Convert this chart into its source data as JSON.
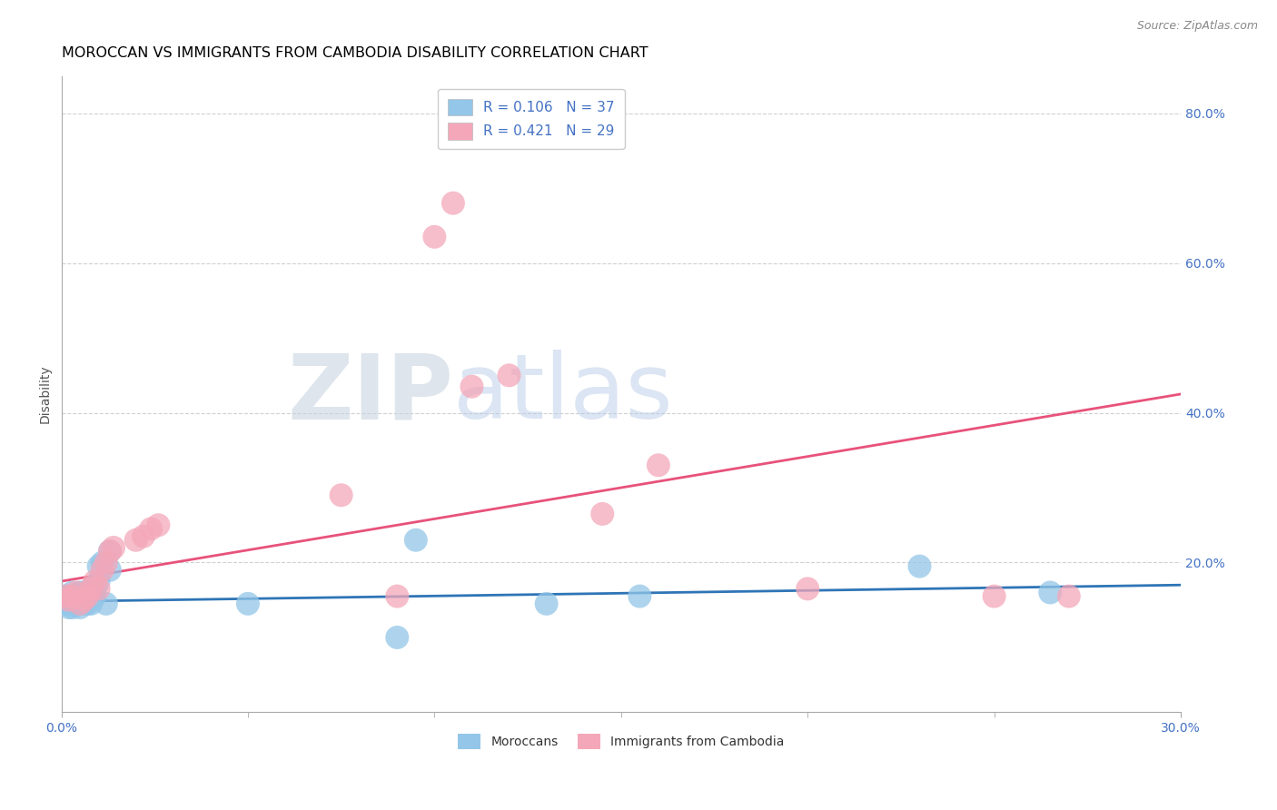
{
  "title": "MOROCCAN VS IMMIGRANTS FROM CAMBODIA DISABILITY CORRELATION CHART",
  "source": "Source: ZipAtlas.com",
  "ylabel": "Disability",
  "xlabel": "",
  "xlim": [
    0.0,
    0.3
  ],
  "ylim": [
    0.0,
    0.85
  ],
  "xtick_values": [
    0.0,
    0.3
  ],
  "ytick_values": [
    0.0,
    0.2,
    0.4,
    0.6,
    0.8
  ],
  "moroccan_color": "#93C6E8",
  "cambodia_color": "#F4A7B9",
  "moroccan_line_color": "#2E75B6",
  "cambodia_line_color": "#E8527A",
  "moroccan_R": 0.106,
  "moroccan_N": 37,
  "cambodia_R": 0.421,
  "cambodia_N": 29,
  "moroccan_x": [
    0.001,
    0.001,
    0.001,
    0.002,
    0.002,
    0.002,
    0.003,
    0.003,
    0.003,
    0.004,
    0.004,
    0.004,
    0.005,
    0.005,
    0.005,
    0.006,
    0.006,
    0.006,
    0.007,
    0.007,
    0.008,
    0.008,
    0.009,
    0.009,
    0.01,
    0.01,
    0.011,
    0.012,
    0.013,
    0.013,
    0.05,
    0.09,
    0.095,
    0.13,
    0.155,
    0.23,
    0.265
  ],
  "moroccan_y": [
    0.145,
    0.15,
    0.155,
    0.14,
    0.145,
    0.155,
    0.14,
    0.15,
    0.16,
    0.145,
    0.15,
    0.155,
    0.14,
    0.145,
    0.16,
    0.145,
    0.15,
    0.16,
    0.145,
    0.155,
    0.145,
    0.165,
    0.155,
    0.165,
    0.175,
    0.195,
    0.2,
    0.145,
    0.19,
    0.215,
    0.145,
    0.1,
    0.23,
    0.145,
    0.155,
    0.195,
    0.16
  ],
  "cambodia_x": [
    0.001,
    0.002,
    0.003,
    0.004,
    0.005,
    0.006,
    0.007,
    0.008,
    0.009,
    0.01,
    0.011,
    0.012,
    0.013,
    0.014,
    0.02,
    0.022,
    0.024,
    0.026,
    0.075,
    0.09,
    0.1,
    0.105,
    0.11,
    0.12,
    0.145,
    0.16,
    0.2,
    0.25,
    0.27
  ],
  "cambodia_y": [
    0.155,
    0.15,
    0.155,
    0.16,
    0.145,
    0.15,
    0.155,
    0.165,
    0.175,
    0.165,
    0.19,
    0.2,
    0.215,
    0.22,
    0.23,
    0.235,
    0.245,
    0.25,
    0.29,
    0.155,
    0.635,
    0.68,
    0.435,
    0.45,
    0.265,
    0.33,
    0.165,
    0.155,
    0.155
  ],
  "blue_line_x": [
    0.0,
    0.3
  ],
  "blue_line_y": [
    0.148,
    0.17
  ],
  "pink_line_x": [
    0.0,
    0.3
  ],
  "pink_line_y": [
    0.175,
    0.425
  ],
  "background_color": "#FFFFFF",
  "grid_color": "#CCCCCC",
  "axis_label_color": "#4472C4",
  "title_color": "#000000",
  "title_fontsize": 11.5,
  "source_fontsize": 9,
  "legend_fontsize": 11
}
